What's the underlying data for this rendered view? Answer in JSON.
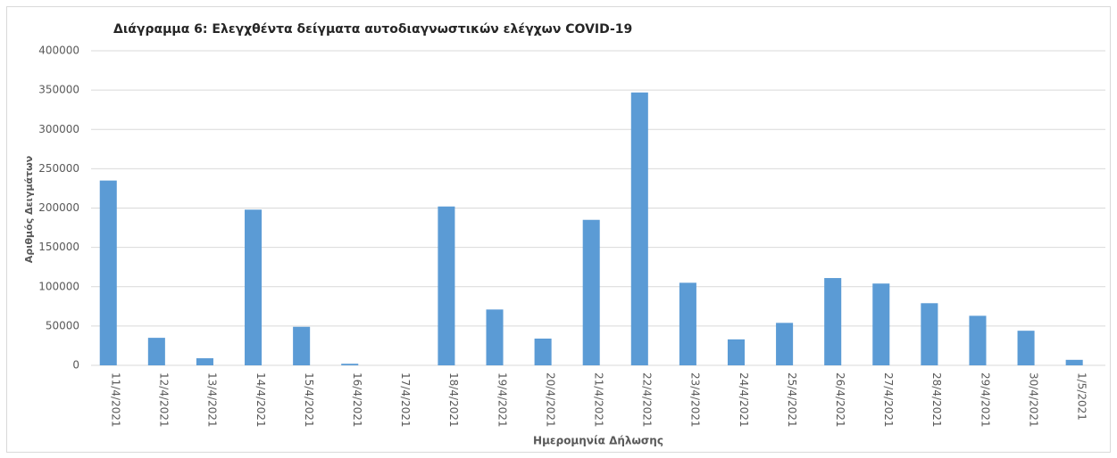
{
  "chart_data": {
    "type": "bar",
    "title": "Διάγραμμα 6: Ελεγχθέντα δείγματα αυτοδιαγνωστικών ελέγχων COVID-19",
    "x_label": "Ημερομηνία Δήλωσης",
    "y_label": "Αριθμός Δειγμάτων",
    "categories": [
      "11/4/2021",
      "12/4/2021",
      "13/4/2021",
      "14/4/2021",
      "15/4/2021",
      "16/4/2021",
      "17/4/2021",
      "18/4/2021",
      "19/4/2021",
      "20/4/2021",
      "21/4/2021",
      "22/4/2021",
      "23/4/2021",
      "24/4/2021",
      "25/4/2021",
      "26/4/2021",
      "27/4/2021",
      "28/4/2021",
      "29/4/2021",
      "30/4/2021",
      "1/5/2021"
    ],
    "values": [
      235000,
      35000,
      9000,
      198000,
      49000,
      2000,
      0,
      202000,
      71000,
      34000,
      185000,
      347000,
      105000,
      33000,
      54000,
      111000,
      104000,
      79000,
      63000,
      44000,
      7000
    ],
    "color": "#5b9bd5",
    "ylim": [
      0,
      400000
    ],
    "yticks": [
      0,
      50000,
      100000,
      150000,
      200000,
      250000,
      300000,
      350000,
      400000
    ],
    "grid": true
  }
}
